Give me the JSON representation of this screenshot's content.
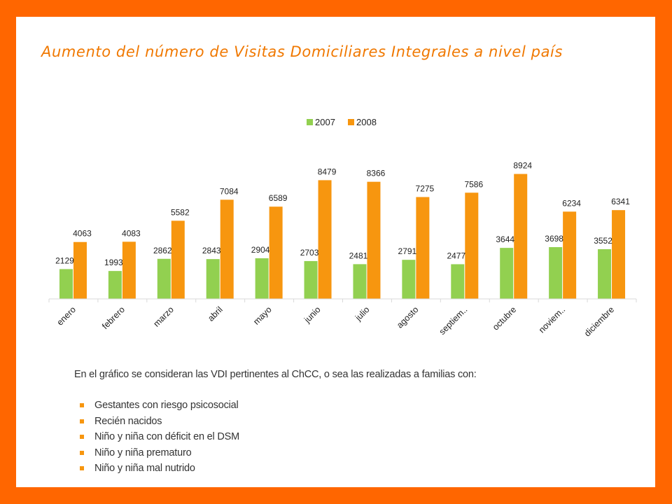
{
  "title": "Aumento del número de Visitas Domiciliares Integrales a nivel país",
  "colors": {
    "frame": "#FF6600",
    "title": "#F07800",
    "series_2007": "#92D050",
    "series_2008": "#F7960F",
    "bullet": "#F7960F"
  },
  "chart_data": {
    "type": "bar",
    "categories": [
      "enero",
      "febrero",
      "marzo",
      "abril",
      "mayo",
      "junio",
      "julio",
      "agosto",
      "septiem..",
      "octubre",
      "noviem..",
      "diciembre"
    ],
    "series": [
      {
        "name": "2007",
        "values": [
          2129,
          1993,
          2862,
          2843,
          2904,
          2703,
          2481,
          2791,
          2477,
          3644,
          3698,
          3552
        ]
      },
      {
        "name": "2008",
        "values": [
          4063,
          4083,
          5582,
          7084,
          6589,
          8479,
          8366,
          7275,
          7586,
          8924,
          6234,
          6341
        ]
      }
    ],
    "ylim": [
      0,
      10000
    ],
    "grid": false,
    "legend": "top-center",
    "data_labels": true
  },
  "caption": "En el gráfico se consideran las VDI pertinentes al ChCC, o sea las realizadas a familias con:",
  "bullets": [
    "Gestantes con riesgo psicosocial",
    "Recién nacidos",
    "Niño y niña con déficit en el DSM",
    "Niño y niña prematuro",
    "Niño y niña mal nutrido"
  ]
}
